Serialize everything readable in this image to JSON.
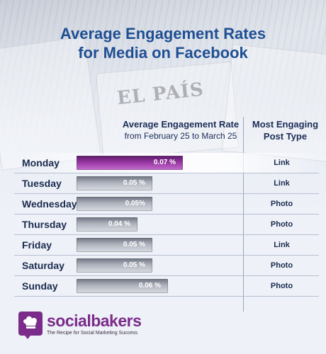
{
  "title_line1": "Average Engagement Rates",
  "title_line2": "for Media on Facebook",
  "column_headers": {
    "rate_title": "Average Engagement Rate",
    "rate_subtitle": "from February 25 to March 25",
    "type_line1": "Most Engaging",
    "type_line2": "Post Type"
  },
  "background_masthead": "EL PAÍS",
  "colors": {
    "title": "#1f4f93",
    "highlight_bar": "#9a3aa6",
    "normal_bar": "#9ea3ad",
    "brand": "#7b2c8a"
  },
  "chart_data": {
    "type": "bar",
    "orientation": "horizontal",
    "title": "Average Engagement Rates for Media on Facebook",
    "categories": [
      "Monday",
      "Tuesday",
      "Wednesday",
      "Thursday",
      "Friday",
      "Saturday",
      "Sunday"
    ],
    "series": [
      {
        "values": [
          0.07,
          0.05,
          0.05,
          0.04,
          0.05,
          0.05,
          0.06
        ]
      }
    ],
    "value_labels": [
      "0.07 %",
      "0.05 %",
      "0.05%",
      "0.04 %",
      "0.05 %",
      "0.05 %",
      "0.06 %"
    ],
    "most_engaging_post_type": [
      "Link",
      "Link",
      "Photo",
      "Photo",
      "Link",
      "Photo",
      "Photo"
    ],
    "highlighted_category": "Monday",
    "grid": false,
    "legend": "none"
  },
  "brand": {
    "name": "socialbakers",
    "tagline": "The Recipe for Social Marketing Success",
    "icon": "chef-hat-icon"
  }
}
